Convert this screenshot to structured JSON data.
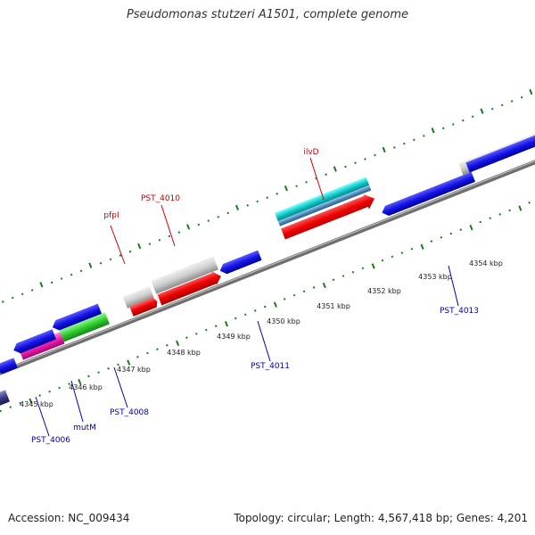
{
  "title": "Pseudomonas stutzeri A1501, complete genome",
  "footer": {
    "accession": "Accession: NC_009434",
    "summary": "Topology: circular; Length: 4,567,418 bp; Genes: 4,201"
  },
  "colors": {
    "forward_gene_label": "#cc0000",
    "reverse_gene_label": "#0000aa",
    "tick": "#1a7a1a",
    "backbone": "#808080"
  },
  "scale_labels": [
    "4345 kbp",
    "4346 kbp",
    "4347 kbp",
    "4348 kbp",
    "4349 kbp",
    "4350 kbp",
    "4351 kbp",
    "4352 kbp",
    "4353 kbp",
    "4354 kbp"
  ],
  "gene_labels": {
    "pfpI": "pfpI",
    "pst4010": "PST_4010",
    "ilvD": "ilvD",
    "pst4011": "PST_4011",
    "pst4013": "PST_4013",
    "pst4008": "PST_4008",
    "mutM": "mutM",
    "pst4006": "PST_4006"
  },
  "icons": [
    "gene-arrow-icon"
  ]
}
